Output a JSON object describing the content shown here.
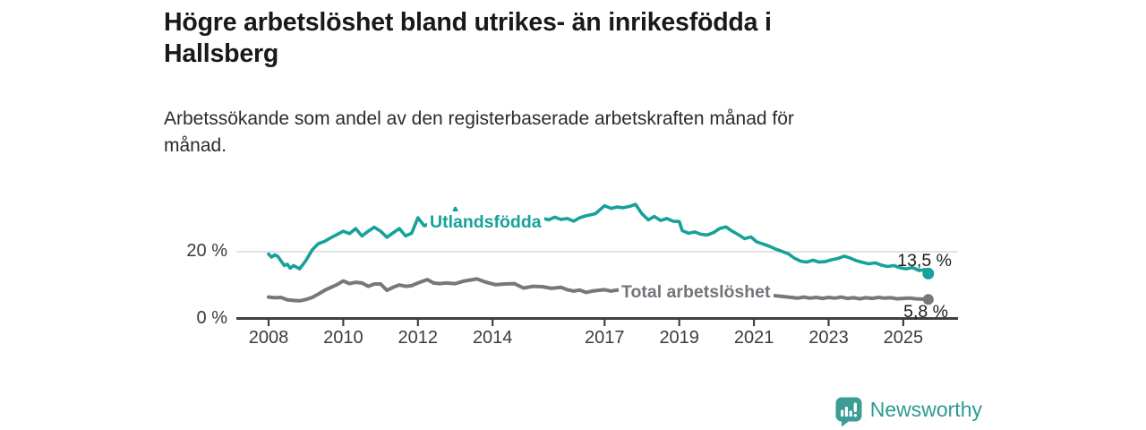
{
  "header": {
    "title": "Högre arbetslöshet bland utrikes- än inrikesfödda i\nHallsberg",
    "subtitle": "Arbetssökande som andel av den registerbaserade arbetskraften månad för\nmånad."
  },
  "chart_data": {
    "type": "line",
    "title": "Högre arbetslöshet bland utrikes- än inrikesfödda i Hallsberg",
    "subtitle": "Arbetssökande som andel av den registerbaserade arbetskraften månad för månad.",
    "unit": "%",
    "grid": "horizontal-20pct-only",
    "legend": "inline-labels-on-lines",
    "x_axis": {
      "ticks": [
        2008,
        2010,
        2012,
        2014,
        2017,
        2019,
        2021,
        2023,
        2025
      ],
      "labels": [
        "2008",
        "2010",
        "2012",
        "2014",
        "2017",
        "2019",
        "2021",
        "2023",
        "2025"
      ],
      "range_years": [
        2007.2,
        2026.4
      ]
    },
    "y_axis": {
      "ticks": [
        0,
        20
      ],
      "labels": [
        "0 %",
        "20 %"
      ],
      "range": [
        0,
        38
      ]
    },
    "series": [
      {
        "name": "Utlandsfödda",
        "color": "#14a29a",
        "end_value": 13.5,
        "end_label": "13,5 %",
        "points": [
          [
            2008.0,
            19.3
          ],
          [
            2008.08,
            18.4
          ],
          [
            2008.17,
            19.1
          ],
          [
            2008.25,
            18.6
          ],
          [
            2008.42,
            15.9
          ],
          [
            2008.5,
            16.3
          ],
          [
            2008.58,
            15.1
          ],
          [
            2008.67,
            15.9
          ],
          [
            2008.83,
            14.9
          ],
          [
            2009.0,
            17.4
          ],
          [
            2009.17,
            20.6
          ],
          [
            2009.33,
            22.4
          ],
          [
            2009.5,
            23.1
          ],
          [
            2009.67,
            24.2
          ],
          [
            2009.83,
            25.1
          ],
          [
            2010.0,
            26.1
          ],
          [
            2010.17,
            25.4
          ],
          [
            2010.33,
            26.9
          ],
          [
            2010.5,
            24.7
          ],
          [
            2010.67,
            26.1
          ],
          [
            2010.83,
            27.3
          ],
          [
            2011.0,
            26.1
          ],
          [
            2011.17,
            24.3
          ],
          [
            2011.33,
            25.6
          ],
          [
            2011.5,
            26.9
          ],
          [
            2011.67,
            24.7
          ],
          [
            2011.83,
            25.5
          ],
          [
            2012.0,
            30.1
          ],
          [
            2012.17,
            27.7
          ],
          [
            2012.33,
            28.5
          ],
          [
            2012.5,
            28.9
          ],
          [
            2012.67,
            28.2
          ],
          [
            2012.83,
            27.5
          ],
          [
            2013.0,
            32.9
          ],
          [
            2013.17,
            28.3
          ],
          [
            2013.33,
            29.5
          ],
          [
            2013.5,
            28.2
          ],
          [
            2013.67,
            26.9
          ],
          [
            2013.83,
            27.7
          ],
          [
            2014.0,
            28.5
          ],
          [
            2014.17,
            30.3
          ],
          [
            2014.33,
            29.4
          ],
          [
            2014.5,
            28.6
          ],
          [
            2014.67,
            27.9
          ],
          [
            2014.83,
            28.7
          ],
          [
            2015.0,
            29.3
          ],
          [
            2015.17,
            31.1
          ],
          [
            2015.33,
            30.0
          ],
          [
            2015.5,
            29.5
          ],
          [
            2015.67,
            30.3
          ],
          [
            2015.83,
            29.6
          ],
          [
            2016.0,
            29.9
          ],
          [
            2016.17,
            29.1
          ],
          [
            2016.33,
            30.1
          ],
          [
            2016.5,
            30.7
          ],
          [
            2016.75,
            31.3
          ],
          [
            2017.0,
            33.7
          ],
          [
            2017.17,
            32.9
          ],
          [
            2017.33,
            33.3
          ],
          [
            2017.5,
            33.1
          ],
          [
            2017.67,
            33.5
          ],
          [
            2017.83,
            34.1
          ],
          [
            2018.0,
            31.3
          ],
          [
            2018.17,
            29.5
          ],
          [
            2018.33,
            30.5
          ],
          [
            2018.5,
            29.3
          ],
          [
            2018.67,
            29.9
          ],
          [
            2018.83,
            29.1
          ],
          [
            2019.0,
            29.0
          ],
          [
            2019.08,
            26.3
          ],
          [
            2019.25,
            25.5
          ],
          [
            2019.42,
            25.9
          ],
          [
            2019.58,
            25.2
          ],
          [
            2019.75,
            25.0
          ],
          [
            2019.92,
            25.7
          ],
          [
            2020.08,
            26.9
          ],
          [
            2020.25,
            27.4
          ],
          [
            2020.42,
            26.1
          ],
          [
            2020.58,
            25.1
          ],
          [
            2020.75,
            23.9
          ],
          [
            2020.92,
            24.4
          ],
          [
            2021.08,
            22.9
          ],
          [
            2021.25,
            22.3
          ],
          [
            2021.42,
            21.6
          ],
          [
            2021.58,
            20.8
          ],
          [
            2021.75,
            20.1
          ],
          [
            2021.92,
            19.4
          ],
          [
            2022.08,
            18.1
          ],
          [
            2022.25,
            17.2
          ],
          [
            2022.42,
            16.9
          ],
          [
            2022.58,
            17.5
          ],
          [
            2022.75,
            16.9
          ],
          [
            2022.92,
            17.1
          ],
          [
            2023.08,
            17.6
          ],
          [
            2023.25,
            18.0
          ],
          [
            2023.42,
            18.7
          ],
          [
            2023.58,
            18.1
          ],
          [
            2023.75,
            17.3
          ],
          [
            2023.92,
            16.8
          ],
          [
            2024.08,
            16.4
          ],
          [
            2024.25,
            16.7
          ],
          [
            2024.42,
            16.0
          ],
          [
            2024.58,
            15.6
          ],
          [
            2024.75,
            15.9
          ],
          [
            2024.92,
            15.2
          ],
          [
            2025.08,
            14.9
          ],
          [
            2025.25,
            15.3
          ],
          [
            2025.42,
            14.4
          ],
          [
            2025.58,
            14.7
          ],
          [
            2025.67,
            13.5
          ]
        ]
      },
      {
        "name": "Total arbetslöshet",
        "color": "#77777e",
        "end_value": 5.8,
        "end_label": "5,8 %",
        "points": [
          [
            2008.0,
            6.5
          ],
          [
            2008.17,
            6.3
          ],
          [
            2008.33,
            6.4
          ],
          [
            2008.5,
            5.7
          ],
          [
            2008.67,
            5.5
          ],
          [
            2008.83,
            5.4
          ],
          [
            2009.0,
            5.8
          ],
          [
            2009.17,
            6.4
          ],
          [
            2009.33,
            7.4
          ],
          [
            2009.5,
            8.5
          ],
          [
            2009.67,
            9.4
          ],
          [
            2009.83,
            10.2
          ],
          [
            2010.0,
            11.3
          ],
          [
            2010.17,
            10.5
          ],
          [
            2010.33,
            10.9
          ],
          [
            2010.5,
            10.7
          ],
          [
            2010.67,
            9.7
          ],
          [
            2010.83,
            10.4
          ],
          [
            2011.0,
            10.4
          ],
          [
            2011.17,
            8.5
          ],
          [
            2011.33,
            9.4
          ],
          [
            2011.5,
            10.1
          ],
          [
            2011.67,
            9.7
          ],
          [
            2011.83,
            9.9
          ],
          [
            2012.0,
            10.7
          ],
          [
            2012.25,
            11.7
          ],
          [
            2012.42,
            10.7
          ],
          [
            2012.58,
            10.5
          ],
          [
            2012.75,
            10.7
          ],
          [
            2013.0,
            10.5
          ],
          [
            2013.25,
            11.3
          ],
          [
            2013.58,
            11.9
          ],
          [
            2013.83,
            10.9
          ],
          [
            2014.08,
            10.2
          ],
          [
            2014.33,
            10.4
          ],
          [
            2014.58,
            10.5
          ],
          [
            2014.83,
            9.2
          ],
          [
            2015.08,
            9.7
          ],
          [
            2015.33,
            9.6
          ],
          [
            2015.58,
            9.1
          ],
          [
            2015.83,
            9.4
          ],
          [
            2016.0,
            8.7
          ],
          [
            2016.17,
            8.3
          ],
          [
            2016.33,
            8.6
          ],
          [
            2016.5,
            7.9
          ],
          [
            2016.67,
            8.3
          ],
          [
            2016.83,
            8.5
          ],
          [
            2017.0,
            8.7
          ],
          [
            2017.17,
            8.3
          ],
          [
            2017.33,
            8.6
          ],
          [
            2017.5,
            8.5
          ],
          [
            2017.67,
            8.8
          ],
          [
            2017.83,
            9.0
          ],
          [
            2018.0,
            9.1
          ],
          [
            2018.25,
            8.6
          ],
          [
            2018.5,
            8.3
          ],
          [
            2018.75,
            8.1
          ],
          [
            2019.0,
            8.3
          ],
          [
            2019.25,
            7.9
          ],
          [
            2019.5,
            7.6
          ],
          [
            2019.75,
            7.5
          ],
          [
            2020.0,
            7.7
          ],
          [
            2020.25,
            8.1
          ],
          [
            2020.5,
            8.2
          ],
          [
            2020.75,
            7.9
          ],
          [
            2021.0,
            7.6
          ],
          [
            2021.25,
            7.3
          ],
          [
            2021.5,
            7.0
          ],
          [
            2021.75,
            6.7
          ],
          [
            2022.0,
            6.4
          ],
          [
            2022.17,
            6.2
          ],
          [
            2022.33,
            6.5
          ],
          [
            2022.5,
            6.2
          ],
          [
            2022.67,
            6.4
          ],
          [
            2022.83,
            6.1
          ],
          [
            2023.0,
            6.4
          ],
          [
            2023.17,
            6.2
          ],
          [
            2023.33,
            6.5
          ],
          [
            2023.5,
            6.1
          ],
          [
            2023.67,
            6.3
          ],
          [
            2023.83,
            6.0
          ],
          [
            2024.0,
            6.3
          ],
          [
            2024.17,
            6.1
          ],
          [
            2024.33,
            6.4
          ],
          [
            2024.5,
            6.2
          ],
          [
            2024.67,
            6.3
          ],
          [
            2024.83,
            6.0
          ],
          [
            2025.0,
            6.1
          ],
          [
            2025.17,
            6.2
          ],
          [
            2025.33,
            6.0
          ],
          [
            2025.5,
            5.9
          ],
          [
            2025.67,
            5.8
          ]
        ]
      }
    ],
    "colors": {
      "axis": "#404040",
      "gridline": "#d9d9d9",
      "tick_label": "#3c3c3c"
    }
  },
  "footer": {
    "brand": "Newsworthy",
    "brand_color": "#2e9a93",
    "icon": "newsworthy-speech-bubble-bar-chart",
    "icon_color": "#3c9d95"
  }
}
